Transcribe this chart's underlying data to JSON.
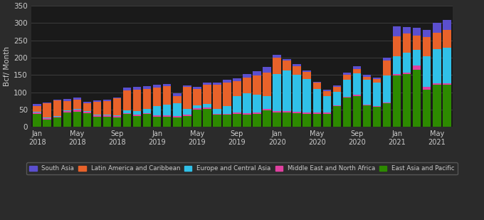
{
  "ylabel": "Bcf/ Month",
  "background_color": "#2b2b2b",
  "plot_bg_color": "#1a1a1a",
  "grid_color": "#3d3d3d",
  "text_color": "#cccccc",
  "ylim": [
    0,
    350
  ],
  "yticks": [
    0,
    50,
    100,
    150,
    200,
    250,
    300,
    350
  ],
  "series_colors": {
    "South Asia": "#5b4fcf",
    "Latin America and Caribbean": "#e8622a",
    "Europe and Central Asia": "#30c0e8",
    "Middle East and North Africa": "#e040a0",
    "East Asia and Pacific": "#2d8a00"
  },
  "data": {
    "East Asia and Pacific": [
      38,
      22,
      27,
      42,
      44,
      40,
      30,
      30,
      28,
      37,
      32,
      37,
      30,
      30,
      28,
      32,
      50,
      52,
      35,
      35,
      38,
      36,
      38,
      48,
      42,
      42,
      40,
      38,
      38,
      38,
      60,
      85,
      90,
      62,
      58,
      68,
      148,
      152,
      165,
      108,
      122,
      122
    ],
    "Middle East and North Africa": [
      3,
      3,
      3,
      3,
      7,
      3,
      3,
      3,
      3,
      3,
      3,
      3,
      3,
      3,
      3,
      3,
      4,
      4,
      3,
      3,
      4,
      3,
      4,
      4,
      3,
      3,
      3,
      3,
      4,
      3,
      3,
      3,
      3,
      3,
      3,
      3,
      4,
      5,
      12,
      8,
      5,
      5
    ],
    "Europe and Central Asia": [
      2,
      2,
      2,
      2,
      2,
      3,
      2,
      2,
      2,
      8,
      10,
      12,
      28,
      32,
      38,
      18,
      8,
      10,
      15,
      22,
      48,
      58,
      52,
      38,
      108,
      118,
      108,
      98,
      68,
      48,
      38,
      48,
      62,
      72,
      68,
      78,
      52,
      58,
      45,
      88,
      98,
      102
    ],
    "Latin America and Caribbean": [
      18,
      42,
      45,
      28,
      25,
      22,
      38,
      40,
      50,
      58,
      62,
      58,
      52,
      52,
      20,
      62,
      48,
      55,
      68,
      68,
      42,
      45,
      55,
      68,
      48,
      28,
      25,
      20,
      18,
      15,
      15,
      15,
      12,
      8,
      10,
      42,
      58,
      55,
      42,
      55,
      48,
      52
    ],
    "South Asia": [
      5,
      2,
      2,
      5,
      8,
      5,
      3,
      3,
      3,
      8,
      8,
      8,
      8,
      7,
      8,
      5,
      5,
      8,
      8,
      8,
      8,
      10,
      12,
      15,
      8,
      5,
      5,
      5,
      3,
      3,
      3,
      5,
      8,
      5,
      3,
      10,
      28,
      18,
      22,
      22,
      28,
      28
    ]
  },
  "n_months": 42,
  "label_map_keys": [
    0,
    4,
    8,
    12,
    16,
    20,
    24,
    28,
    32,
    36,
    40
  ],
  "label_map_vals": [
    "Jan\n2018",
    "May\n2018",
    "Sep\n2018",
    "Jan\n2019",
    "May\n2019",
    "Sep\n2019",
    "Jan\n2020",
    "May\n2020",
    "Sep\n2020",
    "Jan\n2021",
    "May\n2021"
  ]
}
